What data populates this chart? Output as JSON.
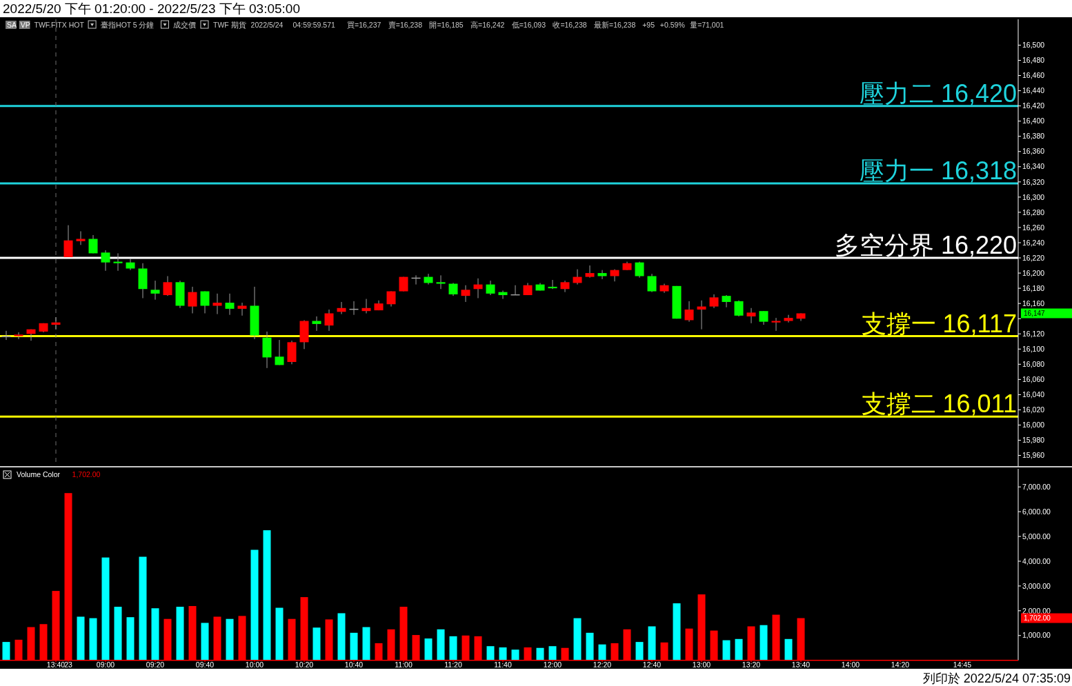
{
  "chart_data": [
    {
      "type": "candlestick",
      "title": "2022/5/20 下午 01:20:00 - 2022/5/23 下午 03:05:00",
      "tick_labels": "y",
      "categories": [
        null,
        null,
        null,
        null,
        "13:40",
        "23",
        null,
        null,
        "09:00",
        null,
        null,
        null,
        "09:20",
        null,
        null,
        null,
        "09:40",
        null,
        null,
        null,
        "10:00",
        null,
        null,
        null,
        "10:20",
        null,
        null,
        null,
        "10:40",
        null,
        null,
        null,
        "11:00",
        null,
        null,
        null,
        "11:20",
        null,
        null,
        null,
        "11:40",
        null,
        null,
        null,
        "12:00",
        null,
        null,
        null,
        "12:20",
        null,
        null,
        null,
        "12:40",
        null,
        null,
        null,
        "13:00",
        null,
        null,
        null,
        "13:20",
        null,
        null,
        null,
        "13:40",
        null,
        null,
        null,
        "14:00",
        null,
        null,
        null,
        "14:20",
        null,
        null,
        null,
        null,
        "14:45",
        null,
        null,
        null,
        null
      ],
      "ohlc": [
        [
          16117,
          16124,
          16112,
          16117
        ],
        [
          16117,
          16122,
          16113,
          16119
        ],
        [
          16120,
          16126,
          16111,
          16126
        ],
        [
          16123,
          16134,
          16122,
          16134
        ],
        [
          16132,
          16142,
          16126,
          16135
        ],
        [
          16221,
          16263,
          16221,
          16243
        ],
        [
          16242,
          16255,
          16237,
          16245
        ],
        [
          16245,
          16250,
          16226,
          16226
        ],
        [
          16227,
          16230,
          16203,
          16214
        ],
        [
          16215,
          16226,
          16203,
          16213
        ],
        [
          16214,
          16219,
          16204,
          16206
        ],
        [
          16206,
          16213,
          16167,
          16179
        ],
        [
          16178,
          16190,
          16165,
          16173
        ],
        [
          16171,
          16196,
          16170,
          16188
        ],
        [
          16188,
          16190,
          16154,
          16157
        ],
        [
          16156,
          16182,
          16147,
          16175
        ],
        [
          16176,
          16176,
          16147,
          16157
        ],
        [
          16157,
          16173,
          16146,
          16161
        ],
        [
          16161,
          16173,
          16145,
          16153
        ],
        [
          16153,
          16161,
          16144,
          16157
        ],
        [
          16157,
          16182,
          16113,
          16118
        ],
        [
          16115,
          16123,
          16075,
          16089
        ],
        [
          16090,
          16112,
          16079,
          16079
        ],
        [
          16083,
          16111,
          16080,
          16109
        ],
        [
          16109,
          16138,
          16100,
          16137
        ],
        [
          16137,
          16143,
          16124,
          16133
        ],
        [
          16131,
          16152,
          16124,
          16147
        ],
        [
          16149,
          16162,
          16146,
          16154
        ],
        [
          16153,
          16163,
          16145,
          16153
        ],
        [
          16150,
          16166,
          16147,
          16154
        ],
        [
          16151,
          16164,
          16151,
          16160
        ],
        [
          16159,
          16176,
          16156,
          16176
        ],
        [
          16176,
          16195,
          16176,
          16195
        ],
        [
          16194,
          16197,
          16185,
          16194
        ],
        [
          16195,
          16199,
          16185,
          16187
        ],
        [
          16188,
          16197,
          16179,
          16186
        ],
        [
          16186,
          16187,
          16170,
          16172
        ],
        [
          16170,
          16184,
          16162,
          16178
        ],
        [
          16179,
          16193,
          16167,
          16185
        ],
        [
          16185,
          16190,
          16171,
          16173
        ],
        [
          16175,
          16177,
          16166,
          16171
        ],
        [
          16172,
          16184,
          16171,
          16172
        ],
        [
          16171,
          16187,
          16171,
          16184
        ],
        [
          16185,
          16187,
          16177,
          16177
        ],
        [
          16182,
          16191,
          16179,
          16180
        ],
        [
          16179,
          16190,
          16175,
          16188
        ],
        [
          16187,
          16205,
          16185,
          16195
        ],
        [
          16195,
          16210,
          16194,
          16200
        ],
        [
          16200,
          16204,
          16192,
          16196
        ],
        [
          16196,
          16205,
          16189,
          16204
        ],
        [
          16204,
          16215,
          16204,
          16213
        ],
        [
          16214,
          16215,
          16194,
          16196
        ],
        [
          16196,
          16199,
          16175,
          16176
        ],
        [
          16176,
          16186,
          16174,
          16184
        ],
        [
          16183,
          16183,
          16140,
          16140
        ],
        [
          16138,
          16163,
          16136,
          16152
        ],
        [
          16152,
          16164,
          16126,
          16156
        ],
        [
          16156,
          16172,
          16154,
          16168
        ],
        [
          16170,
          16171,
          16155,
          16162
        ],
        [
          16163,
          16164,
          16143,
          16144
        ],
        [
          16143,
          16154,
          16134,
          16148
        ],
        [
          16150,
          16150,
          16132,
          16136
        ],
        [
          16135,
          16141,
          16124,
          16137
        ],
        [
          16137,
          16145,
          16135,
          16141
        ],
        [
          16140,
          16147,
          16137,
          16147
        ],
        null,
        null,
        null,
        null,
        null,
        null,
        null,
        null,
        null,
        null,
        null,
        null,
        null,
        null,
        null,
        null,
        null
      ],
      "colors": [
        "#a0a0a0",
        "#ff0000",
        "#ff0000",
        "#ff0000",
        "#ff0000",
        "#ff0000",
        "#ff0000",
        "#00ff00",
        "#00ff00",
        "#00ff00",
        "#00ff00",
        "#00ff00",
        "#00ff00",
        "#ff0000",
        "#00ff00",
        "#ff0000",
        "#00ff00",
        "#ff0000",
        "#00ff00",
        "#ff0000",
        "#00ff00",
        "#00ff00",
        "#00ff00",
        "#ff0000",
        "#ff0000",
        "#00ff00",
        "#ff0000",
        "#ff0000",
        "#a0a0a0",
        "#ff0000",
        "#ff0000",
        "#ff0000",
        "#ff0000",
        "#a0a0a0",
        "#00ff00",
        "#00ff00",
        "#00ff00",
        "#ff0000",
        "#ff0000",
        "#00ff00",
        "#00ff00",
        "#a0a0a0",
        "#ff0000",
        "#00ff00",
        "#00ff00",
        "#ff0000",
        "#ff0000",
        "#ff0000",
        "#00ff00",
        "#ff0000",
        "#ff0000",
        "#00ff00",
        "#00ff00",
        "#ff0000",
        "#00ff00",
        "#ff0000",
        "#ff0000",
        "#ff0000",
        "#00ff00",
        "#00ff00",
        "#ff0000",
        "#00ff00",
        "#ff0000",
        "#ff0000",
        "#ff0000",
        null,
        null,
        null,
        null,
        null,
        null,
        null,
        null,
        null,
        null,
        null,
        null,
        null,
        null,
        null,
        null,
        null
      ],
      "ylim": [
        15946,
        16534
      ],
      "yticks": [
        {
          "value": 15960,
          "label": "15,960"
        },
        {
          "value": 15980,
          "label": "15,980"
        },
        {
          "value": 16000,
          "label": "16,000"
        },
        {
          "value": 16020,
          "label": "16,020"
        },
        {
          "value": 16040,
          "label": "16,040"
        },
        {
          "value": 16060,
          "label": "16,060"
        },
        {
          "value": 16080,
          "label": "16,080"
        },
        {
          "value": 16100,
          "label": "16,100"
        },
        {
          "value": 16120,
          "label": "16,120"
        },
        {
          "value": 16140,
          "label": null
        },
        {
          "value": 16160,
          "label": "16,160"
        },
        {
          "value": 16180,
          "label": "16,180"
        },
        {
          "value": 16200,
          "label": "16,200"
        },
        {
          "value": 16220,
          "label": "16,220"
        },
        {
          "value": 16240,
          "label": "16,240"
        },
        {
          "value": 16260,
          "label": "16,260"
        },
        {
          "value": 16280,
          "label": "16,280"
        },
        {
          "value": 16300,
          "label": "16,300"
        },
        {
          "value": 16320,
          "label": "16,320"
        },
        {
          "value": 16340,
          "label": "16,340"
        },
        {
          "value": 16360,
          "label": "16,360"
        },
        {
          "value": 16380,
          "label": "16,380"
        },
        {
          "value": 16400,
          "label": "16,400"
        },
        {
          "value": 16420,
          "label": "16,420"
        },
        {
          "value": 16440,
          "label": "16,440"
        },
        {
          "value": 16460,
          "label": "16,460"
        },
        {
          "value": 16480,
          "label": "16,480"
        },
        {
          "value": 16500,
          "label": "16,500"
        }
      ],
      "ref_lines": [
        {
          "axis": "y",
          "value": 16420,
          "label": "壓力二 16,420",
          "color": "#1fd3dc"
        },
        {
          "axis": "y",
          "value": 16318,
          "label": "壓力一 16,318",
          "color": "#1fd3dc"
        },
        {
          "axis": "y",
          "value": 16220,
          "label": "多空分界 16,220",
          "color": "#ffffff"
        },
        {
          "axis": "y",
          "value": 16117,
          "label": "支撐一 16,117",
          "color": "#ffff00"
        },
        {
          "axis": "y",
          "value": 16011,
          "label": "支撐二 16,011",
          "color": "#ffff00"
        },
        {
          "axis": "x",
          "value": "13:40",
          "color": "#707070",
          "line_style": "dashed"
        }
      ],
      "annotations": [
        "SA",
        "VP",
        "TWF.FITX HOT",
        "臺指HOT",
        "5 分鐘",
        "成交價",
        "TWF",
        "期貨",
        "2022/5/24",
        "04:59:59.571",
        "買=16,237",
        "賣=16,238",
        "開=16,185",
        "高=16,242",
        "低=16,093",
        "收=16,238",
        "最新=16,238",
        "+95",
        "+0.59%",
        "量=71,001",
        "16,147"
      ]
    },
    {
      "type": "bar",
      "title": "Volume Color",
      "subtitle": "1,702.00",
      "categories": [
        null,
        null,
        null,
        null,
        "13:40",
        "23",
        null,
        null,
        "09:00",
        null,
        null,
        null,
        "09:20",
        null,
        null,
        null,
        "09:40",
        null,
        null,
        null,
        "10:00",
        null,
        null,
        null,
        "10:20",
        null,
        null,
        null,
        "10:40",
        null,
        null,
        null,
        "11:00",
        null,
        null,
        null,
        "11:20",
        null,
        null,
        null,
        "11:40",
        null,
        null,
        null,
        "12:00",
        null,
        null,
        null,
        "12:20",
        null,
        null,
        null,
        "12:40",
        null,
        null,
        null,
        "13:00",
        null,
        null,
        null,
        "13:20",
        null,
        null,
        null,
        "13:40",
        null,
        null,
        null,
        "14:00",
        null,
        null,
        null,
        "14:20",
        null,
        null,
        null,
        null,
        "14:45",
        null,
        null,
        null,
        null
      ],
      "values": [
        740,
        830,
        1340,
        1460,
        2800,
        6750,
        1760,
        1700,
        4150,
        2160,
        1740,
        4180,
        2100,
        1670,
        2160,
        2190,
        1510,
        1760,
        1670,
        1790,
        4460,
        5250,
        2120,
        1670,
        2550,
        1320,
        1650,
        1900,
        1110,
        1340,
        690,
        1250,
        2160,
        1020,
        880,
        1250,
        970,
        1000,
        970,
        570,
        520,
        430,
        520,
        500,
        570,
        500,
        1700,
        1110,
        640,
        690,
        1250,
        740,
        1370,
        720,
        2300,
        1280,
        2660,
        1200,
        810,
        860,
        1370,
        1420,
        1840,
        860,
        1702,
        null,
        null,
        null,
        null,
        null,
        null,
        null,
        null,
        null,
        null,
        null,
        null,
        null,
        null,
        null,
        null,
        null
      ],
      "colors": [
        "#00ffff",
        "#ff0000",
        "#ff0000",
        "#ff0000",
        "#ff0000",
        "#ff0000",
        "#00ffff",
        "#00ffff",
        "#00ffff",
        "#00ffff",
        "#00ffff",
        "#00ffff",
        "#00ffff",
        "#ff0000",
        "#00ffff",
        "#ff0000",
        "#00ffff",
        "#ff0000",
        "#00ffff",
        "#ff0000",
        "#00ffff",
        "#00ffff",
        "#00ffff",
        "#ff0000",
        "#ff0000",
        "#00ffff",
        "#ff0000",
        "#00ffff",
        "#00ffff",
        "#00ffff",
        "#ff0000",
        "#ff0000",
        "#ff0000",
        "#ff0000",
        "#00ffff",
        "#00ffff",
        "#00ffff",
        "#ff0000",
        "#ff0000",
        "#00ffff",
        "#00ffff",
        "#00ffff",
        "#ff0000",
        "#00ffff",
        "#00ffff",
        "#ff0000",
        "#00ffff",
        "#00ffff",
        "#00ffff",
        "#ff0000",
        "#ff0000",
        "#00ffff",
        "#00ffff",
        "#ff0000",
        "#00ffff",
        "#ff0000",
        "#ff0000",
        "#ff0000",
        "#00ffff",
        "#00ffff",
        "#ff0000",
        "#00ffff",
        "#ff0000",
        "#00ffff",
        "#ff0000",
        null,
        null,
        null,
        null,
        null,
        null,
        null,
        null,
        null,
        null,
        null,
        null,
        null,
        null,
        null,
        null,
        null
      ],
      "ylim": [
        0,
        7730
      ],
      "yticks": [
        {
          "value": 1000,
          "label": "1,000.00"
        },
        {
          "value": 2000,
          "label": "2,000.00"
        },
        {
          "value": 3000,
          "label": "3,000.00"
        },
        {
          "value": 4000,
          "label": "4,000.00"
        },
        {
          "value": 5000,
          "label": "5,000.00"
        },
        {
          "value": 6000,
          "label": "6,000.00"
        },
        {
          "value": 7000,
          "label": "7,000.00"
        }
      ],
      "annotations": [
        "1,702.00",
        "列印於 2022/5/24 07:35:09"
      ]
    }
  ]
}
